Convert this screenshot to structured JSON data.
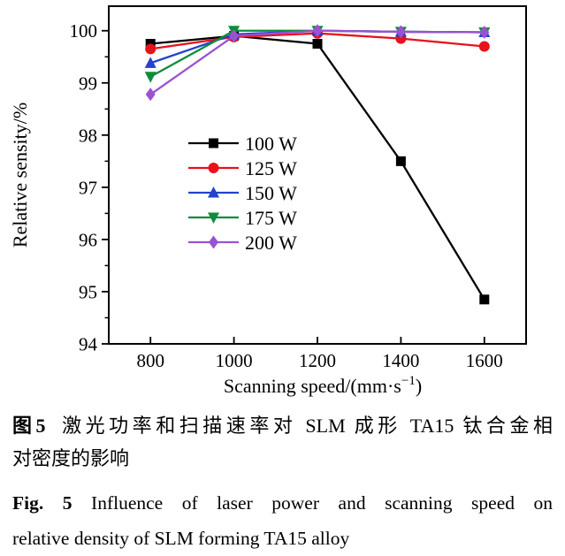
{
  "figure": {
    "caption": {
      "zh_label": "图5",
      "zh_line1": "激光功率和扫描速率对 SLM 成形 TA15 钛合金相",
      "zh_line2": "对密度的影响",
      "en_label": "Fig. 5",
      "en_line1": "Influence of laser power and scanning speed on",
      "en_line2": "relative density of SLM forming TA15 alloy"
    }
  },
  "chart_data": {
    "type": "line",
    "title": "",
    "xlabel": "Scanning speed/(mm·s⁻¹)",
    "xlabel_parts": {
      "main": "Scanning speed/(mm·s",
      "sup": "−1",
      "end": ")"
    },
    "ylabel": "Relative sensity/%",
    "x": [
      800,
      1000,
      1200,
      1400,
      1600
    ],
    "xlim": [
      700,
      1700
    ],
    "ylim": [
      94,
      100.47
    ],
    "xticks": [
      800,
      1000,
      1200,
      1400,
      1600
    ],
    "yticks": [
      94,
      95,
      96,
      97,
      98,
      99,
      100
    ],
    "y_minor_step": 0.5,
    "grid": false,
    "legend_position": "inside-center-left",
    "series": [
      {
        "name": "100 W",
        "color": "#000000",
        "marker": "square",
        "values": [
          99.75,
          99.9,
          99.75,
          97.5,
          94.85
        ]
      },
      {
        "name": "125 W",
        "color": "#e8111c",
        "marker": "circle",
        "values": [
          99.65,
          99.88,
          99.95,
          99.85,
          99.7
        ]
      },
      {
        "name": "150 W",
        "color": "#2343cc",
        "marker": "triangle-up",
        "values": [
          99.38,
          99.93,
          100.0,
          99.98,
          99.97
        ]
      },
      {
        "name": "175 W",
        "color": "#0e8c3c",
        "marker": "triangle-down",
        "values": [
          99.12,
          100.0,
          100.0,
          99.98,
          99.97
        ]
      },
      {
        "name": "200 W",
        "color": "#9b51d1",
        "marker": "diamond",
        "values": [
          98.78,
          99.9,
          100.0,
          99.98,
          99.97
        ]
      }
    ]
  }
}
